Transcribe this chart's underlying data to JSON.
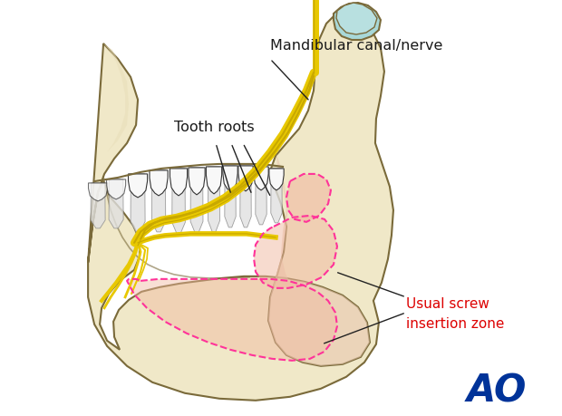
{
  "background_color": "#ffffff",
  "label_mandibular": "Mandibular canal/nerve",
  "label_tooth": "Tooth roots",
  "label_screw": "Usual screw\ninsertion zone",
  "label_ao": "AO",
  "label_color_mandibular": "#1a1a1a",
  "label_color_tooth": "#1a1a1a",
  "label_color_screw": "#dd0000",
  "label_color_ao": "#003399",
  "bone_fill": "#f0e8c8",
  "bone_fill2": "#e8ddb8",
  "bone_stroke": "#7a6a3a",
  "tooth_fill": "#f8f8f8",
  "tooth_stroke": "#444444",
  "nerve_yellow": "#e8c800",
  "nerve_dark": "#c8a800",
  "dashed_zone_color": "#ff3399",
  "zone_fill": "#f0b8a0",
  "condyle_fill": "#a8d8d8",
  "ramus_pink": "#e8c8b0",
  "figsize": [
    6.2,
    4.59
  ],
  "dpi": 100
}
